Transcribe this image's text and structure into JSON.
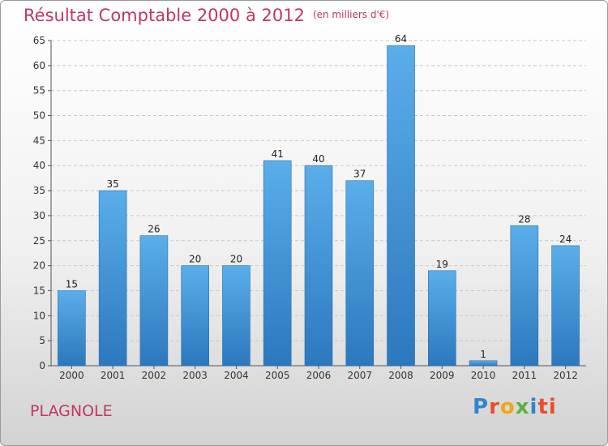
{
  "title": "Résultat Comptable 2000 à 2012",
  "unit_note": "(en milliers d'€)",
  "location": "PLAGNOLE",
  "logo": {
    "letters": [
      "P",
      "r",
      "o",
      "x",
      "i",
      "ti"
    ]
  },
  "colors": {
    "title": "#c0375f",
    "bar_top": "#5aaeea",
    "bar_bottom": "#2c78bd"
  },
  "chart_data": {
    "type": "bar",
    "title": "Résultat Comptable 2000 à 2012",
    "ylabel": "en milliers d'€",
    "xlabel": "",
    "categories": [
      "2000",
      "2001",
      "2002",
      "2003",
      "2004",
      "2005",
      "2006",
      "2007",
      "2008",
      "2009",
      "2010",
      "2011",
      "2012"
    ],
    "values": [
      15,
      35,
      26,
      20,
      20,
      41,
      40,
      37,
      64,
      19,
      1,
      28,
      24
    ],
    "ylim": [
      0,
      65
    ],
    "yticks": [
      0,
      5,
      10,
      15,
      20,
      25,
      30,
      35,
      40,
      45,
      50,
      55,
      60,
      65
    ],
    "grid": true,
    "legend": "none"
  }
}
